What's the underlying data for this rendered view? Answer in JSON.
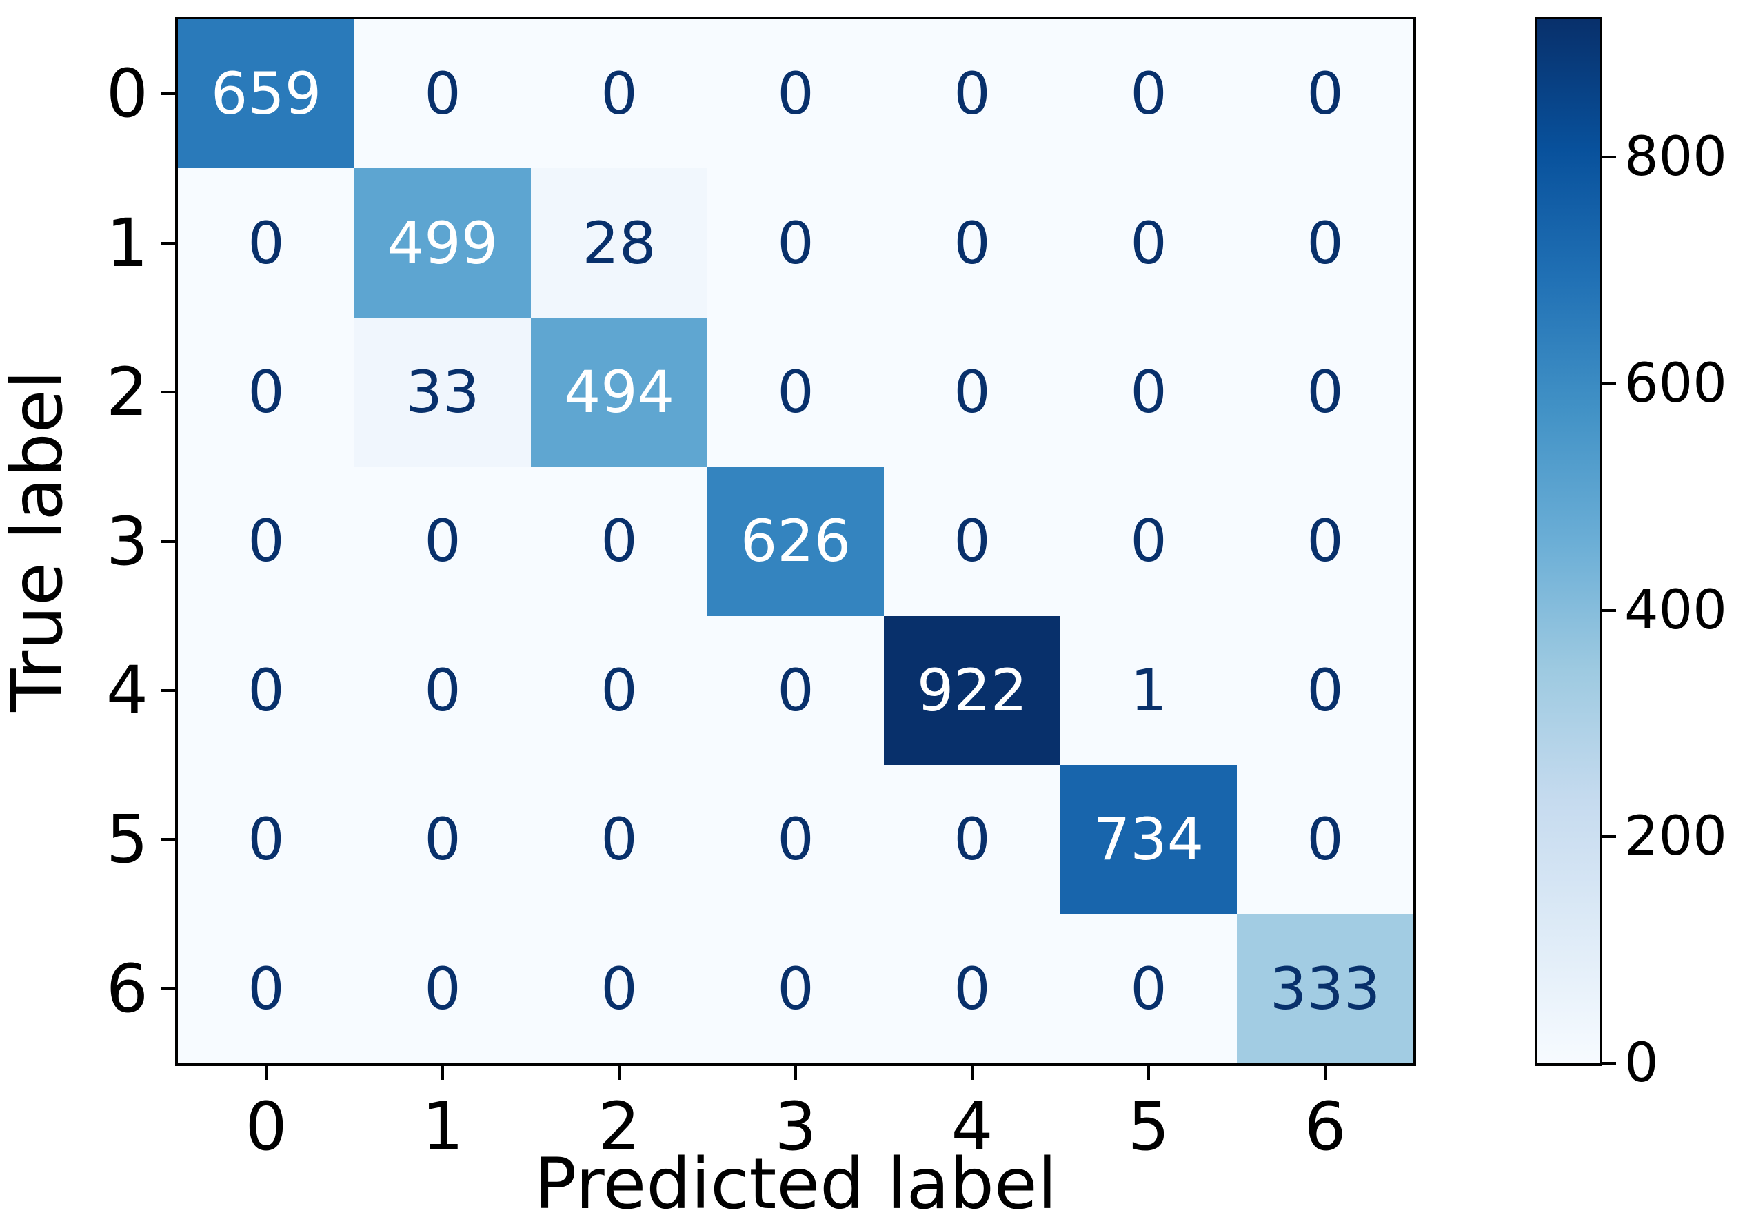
{
  "chart_data": {
    "type": "heatmap",
    "subtype": "confusion-matrix",
    "title": "",
    "xlabel": "Predicted label",
    "ylabel": "True label",
    "x_tick_labels": [
      "0",
      "1",
      "2",
      "3",
      "4",
      "5",
      "6"
    ],
    "y_tick_labels": [
      "0",
      "1",
      "2",
      "3",
      "4",
      "5",
      "6"
    ],
    "matrix": [
      [
        659,
        0,
        0,
        0,
        0,
        0,
        0
      ],
      [
        0,
        499,
        28,
        0,
        0,
        0,
        0
      ],
      [
        0,
        33,
        494,
        0,
        0,
        0,
        0
      ],
      [
        0,
        0,
        0,
        626,
        0,
        0,
        0
      ],
      [
        0,
        0,
        0,
        0,
        922,
        1,
        0
      ],
      [
        0,
        0,
        0,
        0,
        0,
        734,
        0
      ],
      [
        0,
        0,
        0,
        0,
        0,
        0,
        333
      ]
    ],
    "vmin": 0,
    "vmax": 922,
    "colormap_name": "Blues",
    "colormap_anchors": [
      "#f7fbff",
      "#deebf7",
      "#c6dbef",
      "#9ecae1",
      "#6baed6",
      "#4292c6",
      "#2171b5",
      "#08519c",
      "#08306b"
    ],
    "cell_text_color_on_dark": "#ffffff",
    "cell_text_color_on_light": "#08306b",
    "axis_color": "#000000",
    "plot_background": "#f7fbff",
    "legend_position": "right-colorbar",
    "grid": false,
    "colorbar": {
      "ticks": [
        0,
        200,
        400,
        600,
        800
      ],
      "tick_labels": [
        "0",
        "200",
        "400",
        "600",
        "800"
      ]
    }
  }
}
